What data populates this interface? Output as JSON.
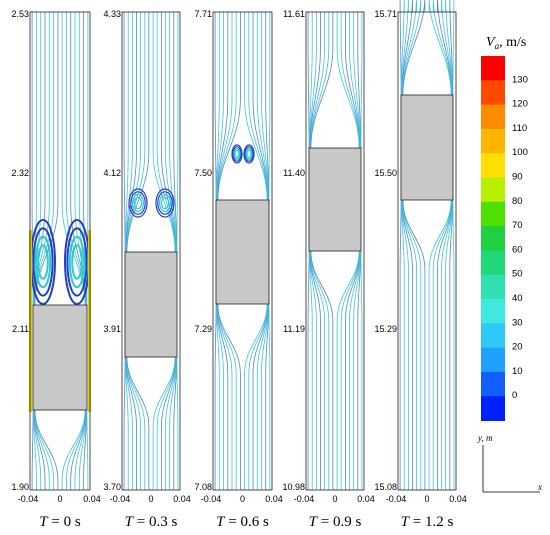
{
  "panels": [
    {
      "caption_var": "T",
      "caption_val": " = 0 s",
      "y_labels": [
        "2.53",
        "2.32",
        "2.11",
        "1.90"
      ],
      "x_labels": [
        "-0.04",
        "0",
        "0.04"
      ]
    },
    {
      "caption_var": "T",
      "caption_val": " = 0.3 s",
      "y_labels": [
        "4.33",
        "4.12",
        "3.91",
        "3.70"
      ],
      "x_labels": [
        "-0.04",
        "0",
        "0.04"
      ]
    },
    {
      "caption_var": "T",
      "caption_val": " = 0.6 s",
      "y_labels": [
        "7.71",
        "7.50",
        "7.29",
        "7.08"
      ],
      "x_labels": [
        "-0.04",
        "0",
        "0.04"
      ]
    },
    {
      "caption_var": "T",
      "caption_val": " = 0.9 s",
      "y_labels": [
        "11.61",
        "11.40",
        "11.19",
        "10.98"
      ],
      "x_labels": [
        "-0.04",
        "0",
        "0.04"
      ]
    },
    {
      "caption_var": "T",
      "caption_val": " = 1.2 s",
      "y_labels": [
        "15.71",
        "15.50",
        "15.29",
        "15.08"
      ],
      "x_labels": [
        "-0.04",
        "0",
        "0.04"
      ]
    }
  ],
  "legend": {
    "title_var": "V",
    "title_sub": "a",
    "title_unit": ", m/s",
    "ticks": [
      "130",
      "120",
      "110",
      "100",
      "90",
      "80",
      "70",
      "60",
      "50",
      "40",
      "30",
      "20",
      "10",
      "0"
    ],
    "colors": [
      "#ff0000",
      "#ff4a00",
      "#ff8c00",
      "#ffb400",
      "#ffe000",
      "#b8f000",
      "#50e000",
      "#20d040",
      "#20d878",
      "#30e0b0",
      "#40e8e0",
      "#30c8f8",
      "#20a0ff",
      "#1060ff",
      "#0020ff"
    ]
  },
  "axes_indicator": {
    "y_label": "y, m",
    "x_label": "x"
  },
  "colors": {
    "streamline": "#3ec8d8",
    "streamline_dark": "#2040c0",
    "body": "#c8c8c8",
    "wall": "#30b060"
  }
}
